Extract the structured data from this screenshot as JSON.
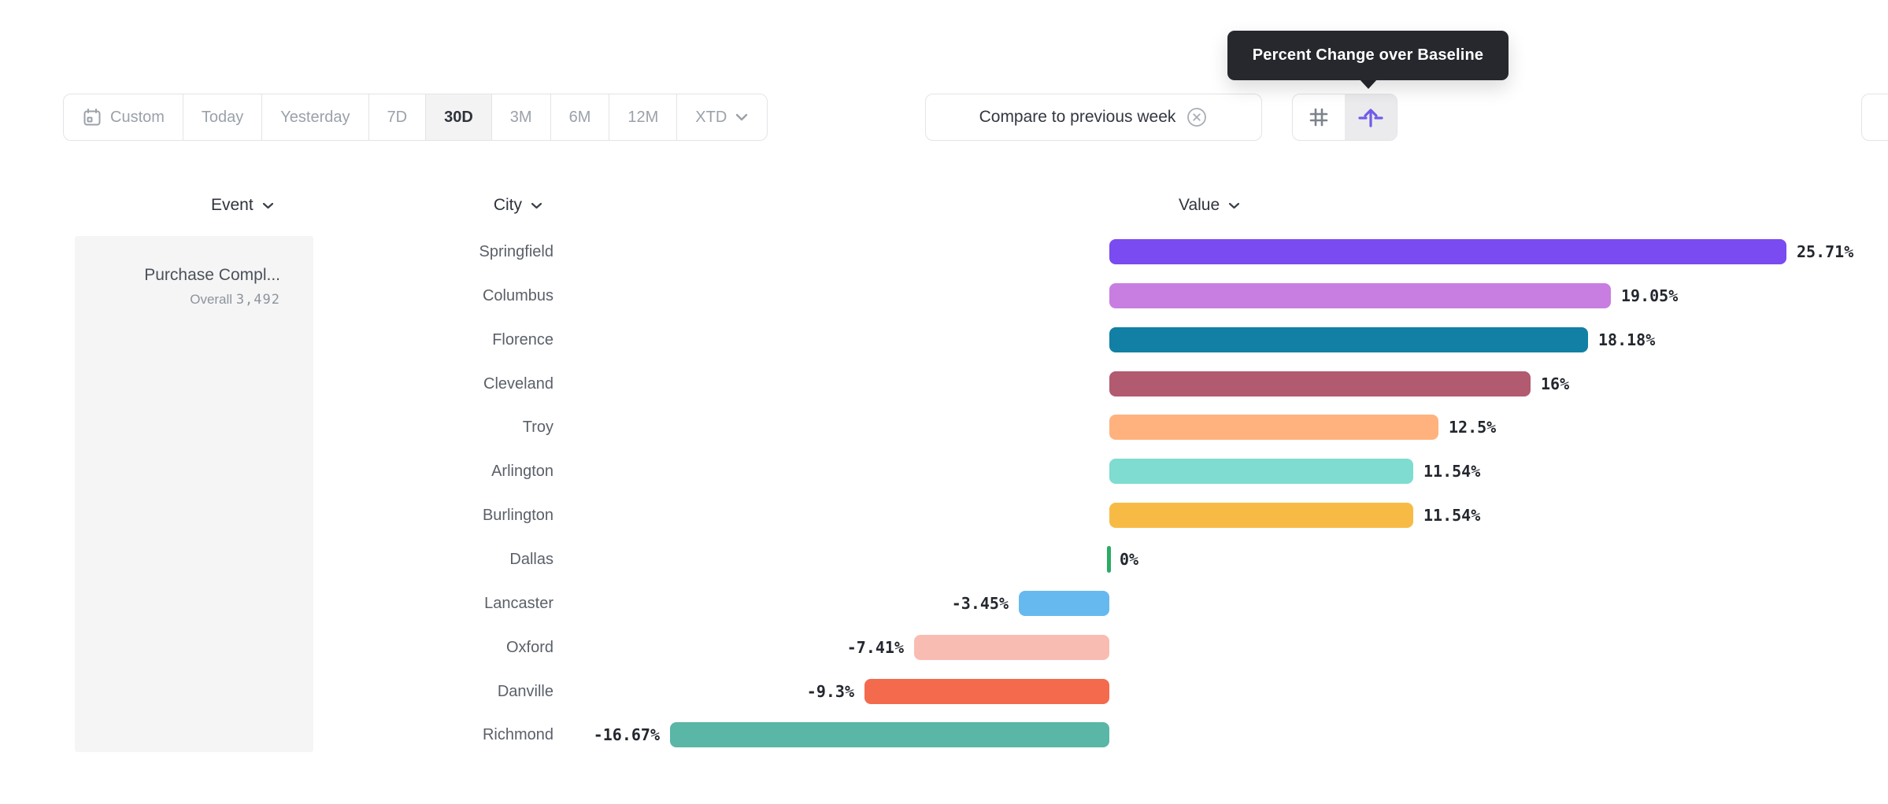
{
  "tooltip": {
    "text": "Percent Change over Baseline"
  },
  "toolbar": {
    "date_ranges": [
      {
        "label": "Custom",
        "selected": false
      },
      {
        "label": "Today",
        "selected": false
      },
      {
        "label": "Yesterday",
        "selected": false
      },
      {
        "label": "7D",
        "selected": false
      },
      {
        "label": "30D",
        "selected": true
      },
      {
        "label": "3M",
        "selected": false
      },
      {
        "label": "6M",
        "selected": false
      },
      {
        "label": "12M",
        "selected": false
      },
      {
        "label": "XTD",
        "selected": false
      }
    ],
    "compare_label": "Compare to previous week",
    "view_toggle": {
      "selected": "percent-change-baseline"
    }
  },
  "columns": {
    "event": "Event",
    "city": "City",
    "value": "Value"
  },
  "event_panel": {
    "event_name": "Purchase Compl...",
    "overall_label": "Overall",
    "overall_value": "3,492"
  },
  "chart_data": {
    "type": "bar",
    "orientation": "horizontal",
    "value_format": "percent change over baseline",
    "categories": [
      "Springfield",
      "Columbus",
      "Florence",
      "Cleveland",
      "Troy",
      "Arlington",
      "Burlington",
      "Dallas",
      "Lancaster",
      "Oxford",
      "Danville",
      "Richmond"
    ],
    "values": [
      25.71,
      19.05,
      18.18,
      16,
      12.5,
      11.54,
      11.54,
      0,
      -3.45,
      -7.41,
      -9.3,
      -16.67
    ],
    "labels": [
      "25.71%",
      "19.05%",
      "18.18%",
      "16%",
      "12.5%",
      "11.54%",
      "11.54%",
      "0%",
      "-3.45%",
      "-7.41%",
      "-9.3%",
      "-16.67%"
    ],
    "colors": [
      "#7a4bf0",
      "#c77ee0",
      "#1180a4",
      "#b25a70",
      "#ffb27d",
      "#7edcd0",
      "#f7bb45",
      "#2bab64",
      "#66b9ef",
      "#f9bcb2",
      "#f46a4d",
      "#5ab6a6"
    ],
    "zero_tick_color": "#2bab64",
    "baseline": 0,
    "xlim": [
      -16.67,
      25.71
    ],
    "grid": false,
    "legend": false
  }
}
